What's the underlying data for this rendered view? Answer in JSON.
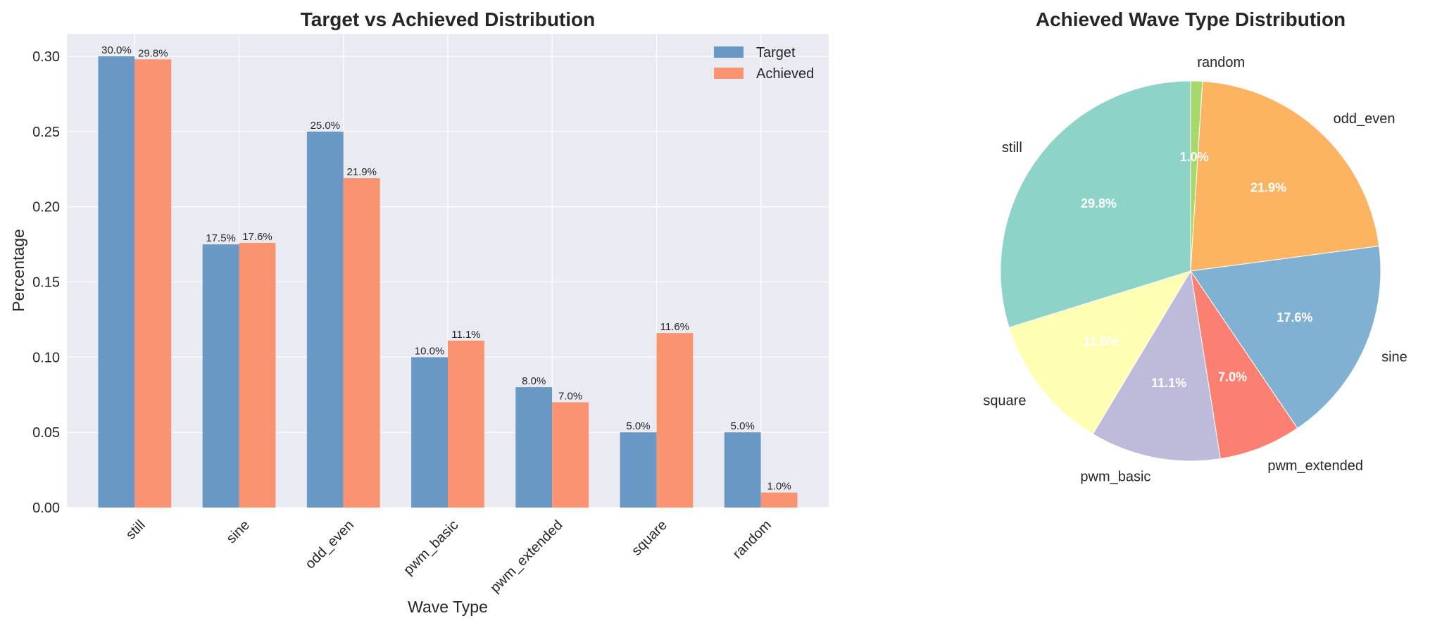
{
  "chart_data": [
    {
      "type": "bar",
      "title": "Target vs Achieved Distribution",
      "xlabel": "Wave Type",
      "ylabel": "Percentage",
      "categories": [
        "still",
        "sine",
        "odd_even",
        "pwm_basic",
        "pwm_extended",
        "square",
        "random"
      ],
      "ylim": [
        0,
        0.315
      ],
      "yticks": [
        0.0,
        0.05,
        0.1,
        0.15,
        0.2,
        0.25,
        0.3
      ],
      "ytick_labels": [
        "0.00",
        "0.05",
        "0.10",
        "0.15",
        "0.20",
        "0.25",
        "0.30"
      ],
      "grid": true,
      "legend_position": "top-right",
      "series": [
        {
          "name": "Target",
          "color": "#6898c3",
          "values": [
            0.3,
            0.175,
            0.25,
            0.1,
            0.08,
            0.05,
            0.05
          ],
          "labels": [
            "30.0%",
            "17.5%",
            "25.0%",
            "10.0%",
            "8.0%",
            "5.0%",
            "5.0%"
          ]
        },
        {
          "name": "Achieved",
          "color": "#fa9470",
          "values": [
            0.298,
            0.176,
            0.219,
            0.111,
            0.07,
            0.116,
            0.01
          ],
          "labels": [
            "29.8%",
            "17.6%",
            "21.9%",
            "11.1%",
            "7.0%",
            "11.6%",
            "1.0%"
          ]
        }
      ]
    },
    {
      "type": "pie",
      "title": "Achieved Wave Type Distribution",
      "start_angle": "top",
      "direction": "clockwise",
      "slices": [
        {
          "label": "random",
          "value": 1.0,
          "pct": "1.0%",
          "color": "#a6d96a"
        },
        {
          "label": "odd_even",
          "value": 21.9,
          "pct": "21.9%",
          "color": "#fdb462"
        },
        {
          "label": "sine",
          "value": 17.6,
          "pct": "17.6%",
          "color": "#80b1d3"
        },
        {
          "label": "pwm_extended",
          "value": 7.0,
          "pct": "7.0%",
          "color": "#fb8072"
        },
        {
          "label": "pwm_basic",
          "value": 11.1,
          "pct": "11.1%",
          "color": "#bebada"
        },
        {
          "label": "square",
          "value": 11.6,
          "pct": "11.6%",
          "color": "#ffffb3"
        },
        {
          "label": "still",
          "value": 29.8,
          "pct": "29.8%",
          "color": "#8dd3c7"
        }
      ]
    }
  ]
}
